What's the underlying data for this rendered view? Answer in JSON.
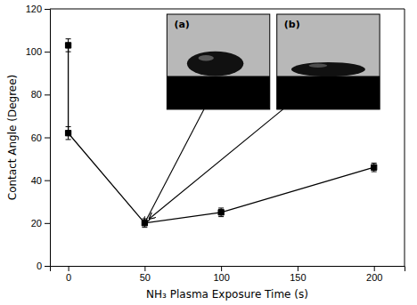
{
  "chart_data": {
    "type": "line",
    "xlabel": "NH₃ Plasma Exposure Time (s)",
    "ylabel": "Contact Angle (Degree)",
    "x": [
      0,
      0,
      50,
      100,
      200
    ],
    "series": [
      {
        "values": [
          103,
          62,
          20,
          25,
          46
        ],
        "errors": [
          3,
          3,
          2,
          2,
          2
        ],
        "color": "black",
        "marker": "square"
      }
    ],
    "xlim": [
      -12,
      220
    ],
    "ylim": [
      0,
      120
    ],
    "xticks": [
      0,
      50,
      100,
      150,
      200
    ],
    "yticks": [
      0,
      20,
      40,
      60,
      80,
      100,
      120
    ],
    "grid": false,
    "annotations": [
      {
        "text": "(a)",
        "x": 50,
        "y": 20
      },
      {
        "text": "(b)",
        "x": 53,
        "y": 22
      }
    ]
  }
}
